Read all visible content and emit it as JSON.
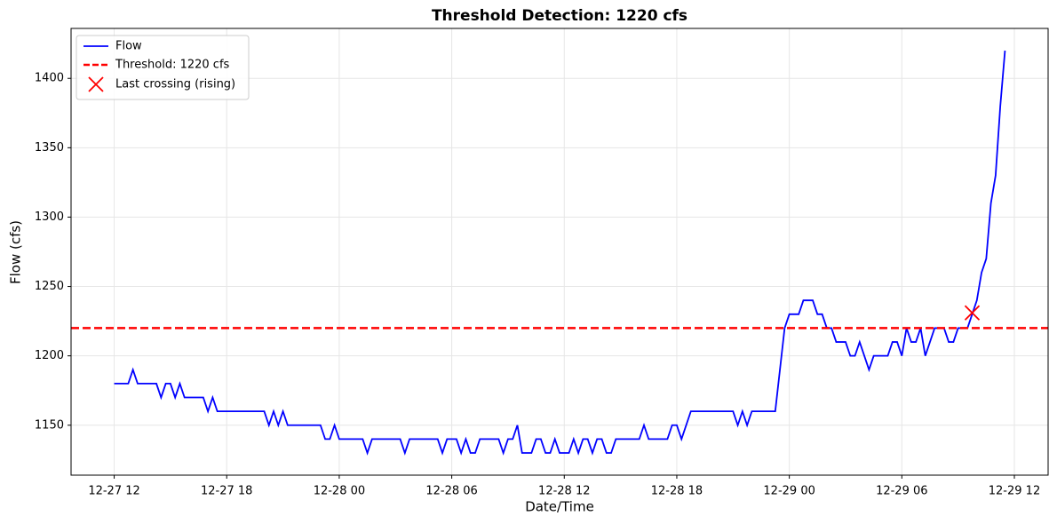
{
  "chart_data": {
    "type": "line",
    "title": "Threshold Detection: 1220 cfs",
    "xlabel": "Date/Time",
    "ylabel": "Flow (cfs)",
    "x": [
      0,
      0.75,
      1,
      1.25,
      2.25,
      2.5,
      2.75,
      3,
      3.25,
      3.5,
      3.75,
      4.75,
      5,
      5.25,
      5.5,
      8,
      8.25,
      8.5,
      8.75,
      9,
      9.25,
      11,
      11.25,
      11.5,
      11.75,
      12,
      13.25,
      13.5,
      13.75,
      15.25,
      15.5,
      15.75,
      17.25,
      17.5,
      17.75,
      18.25,
      18.5,
      18.75,
      19,
      19.25,
      19.5,
      20.5,
      20.75,
      21,
      21.25,
      21.5,
      21.75,
      22.25,
      22.5,
      22.75,
      23,
      23.25,
      23.5,
      23.75,
      24.25,
      24.5,
      24.75,
      25,
      25.25,
      25.5,
      25.75,
      26,
      26.25,
      26.5,
      26.75,
      28,
      28.25,
      28.5,
      29.5,
      29.75,
      30,
      30.25,
      30.75,
      33,
      33.25,
      33.5,
      33.75,
      34,
      35.25,
      35.75,
      36,
      36.5,
      36.75,
      37.25,
      37.5,
      37.75,
      38,
      38.25,
      38.5,
      39,
      39.25,
      39.5,
      39.75,
      40.25,
      40.5,
      41.25,
      41.5,
      41.75,
      42,
      42.25,
      42.5,
      42.75,
      43,
      43.25,
      43.75,
      44.25,
      44.5,
      44.75,
      45,
      45.5,
      45.75,
      46,
      46.25,
      46.5,
      46.75,
      47,
      47.25,
      47.5
    ],
    "series": [
      {
        "name": "Flow",
        "color": "#0000ff",
        "values": [
          1180,
          1180,
          1190,
          1180,
          1180,
          1170,
          1180,
          1180,
          1170,
          1180,
          1170,
          1170,
          1160,
          1170,
          1160,
          1160,
          1150,
          1160,
          1150,
          1160,
          1150,
          1150,
          1140,
          1140,
          1150,
          1140,
          1140,
          1130,
          1140,
          1140,
          1130,
          1140,
          1140,
          1130,
          1140,
          1140,
          1130,
          1140,
          1130,
          1130,
          1140,
          1140,
          1130,
          1140,
          1140,
          1150,
          1130,
          1130,
          1140,
          1140,
          1130,
          1130,
          1140,
          1130,
          1130,
          1140,
          1130,
          1140,
          1140,
          1130,
          1140,
          1140,
          1130,
          1130,
          1140,
          1140,
          1150,
          1140,
          1140,
          1150,
          1150,
          1140,
          1160,
          1160,
          1150,
          1160,
          1150,
          1160,
          1160,
          1220,
          1230,
          1230,
          1240,
          1240,
          1230,
          1230,
          1220,
          1220,
          1210,
          1210,
          1200,
          1200,
          1210,
          1190,
          1200,
          1200,
          1210,
          1210,
          1200,
          1220,
          1210,
          1210,
          1220,
          1200,
          1220,
          1220,
          1210,
          1210,
          1220,
          1220,
          1230,
          1240,
          1260,
          1270,
          1310,
          1330,
          1380,
          1420
        ]
      }
    ],
    "threshold": {
      "name": "Threshold: 1220 cfs",
      "value": 1220,
      "color": "#ff0000"
    },
    "marker": {
      "name": "Last crossing (rising)",
      "x": 45.75,
      "y": 1231,
      "color": "#ff0000"
    },
    "xlim": [
      -2.3,
      49.8
    ],
    "ylim": [
      1114,
      1436
    ],
    "xticks": [
      {
        "value": 0,
        "label": "12-27 12"
      },
      {
        "value": 6,
        "label": "12-27 18"
      },
      {
        "value": 12,
        "label": "12-28 00"
      },
      {
        "value": 18,
        "label": "12-28 06"
      },
      {
        "value": 24,
        "label": "12-28 12"
      },
      {
        "value": 30,
        "label": "12-28 18"
      },
      {
        "value": 36,
        "label": "12-29 00"
      },
      {
        "value": 42,
        "label": "12-29 06"
      },
      {
        "value": 48,
        "label": "12-29 12"
      }
    ],
    "yticks": [
      1150,
      1200,
      1250,
      1300,
      1350,
      1400
    ],
    "grid": true,
    "legend": "upper left"
  }
}
